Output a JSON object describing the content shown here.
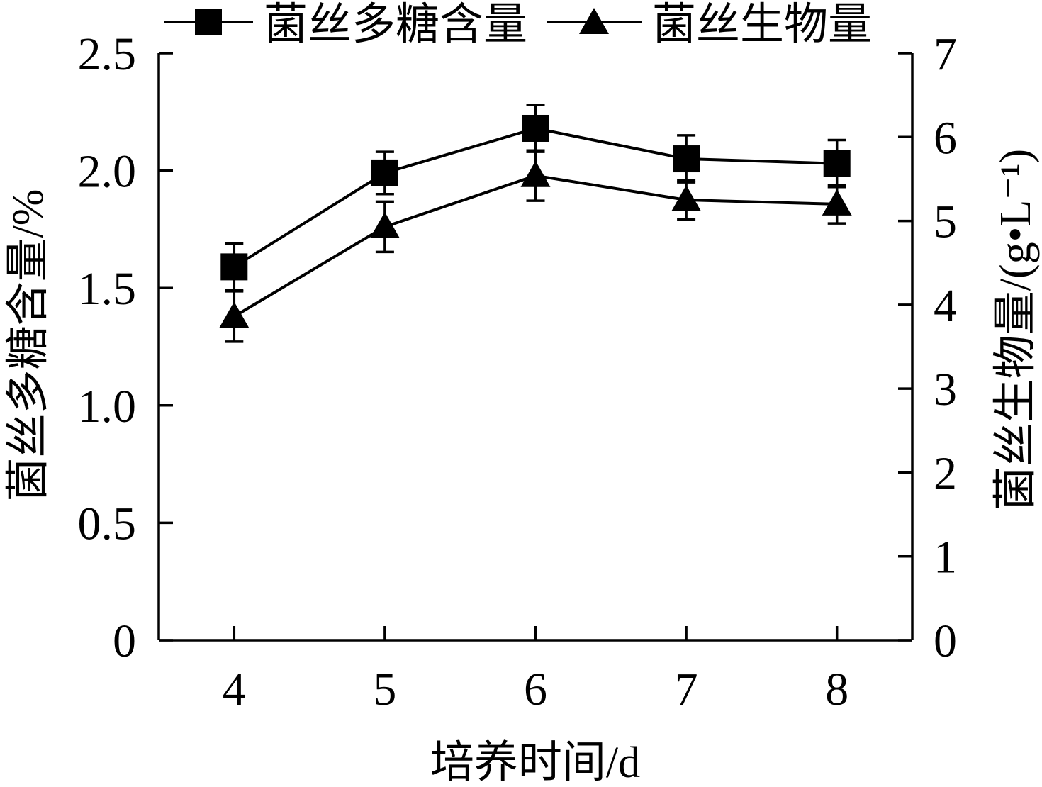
{
  "chart_data": {
    "type": "line",
    "legend": "top",
    "grid": false,
    "x": [
      4,
      5,
      6,
      7,
      8
    ],
    "xlabel": "培养时间/d",
    "xlim": [
      3.5,
      8.5
    ],
    "x_ticks": [
      4,
      5,
      6,
      7,
      8
    ],
    "x_tick_labels": [
      "4",
      "5",
      "6",
      "7",
      "8"
    ],
    "y_left": {
      "label": "菌丝多糖含量/%",
      "lim": [
        0,
        2.5
      ],
      "ticks": [
        0,
        0.5,
        1.0,
        1.5,
        2.0,
        2.5
      ],
      "tick_labels": [
        "0",
        "0.5",
        "1.0",
        "1.5",
        "2.0",
        "2.5"
      ]
    },
    "y_right": {
      "label": "菌丝生物量/(g•L⁻¹)",
      "lim": [
        0,
        7
      ],
      "ticks": [
        0,
        1,
        2,
        3,
        4,
        5,
        6,
        7
      ],
      "tick_labels": [
        "0",
        "1",
        "2",
        "3",
        "4",
        "5",
        "6",
        "7"
      ]
    },
    "series": [
      {
        "name": "菌丝多糖含量",
        "y_axis": "left",
        "marker": "square",
        "color": "#000000",
        "values": [
          1.59,
          1.99,
          2.18,
          2.05,
          2.03
        ],
        "errors": [
          0.1,
          0.09,
          0.1,
          0.1,
          0.1
        ]
      },
      {
        "name": "菌丝生物量",
        "y_axis": "right",
        "marker": "triangle",
        "color": "#000000",
        "values": [
          3.86,
          4.93,
          5.54,
          5.25,
          5.2
        ],
        "errors": [
          0.3,
          0.3,
          0.3,
          0.23,
          0.23
        ]
      }
    ]
  }
}
